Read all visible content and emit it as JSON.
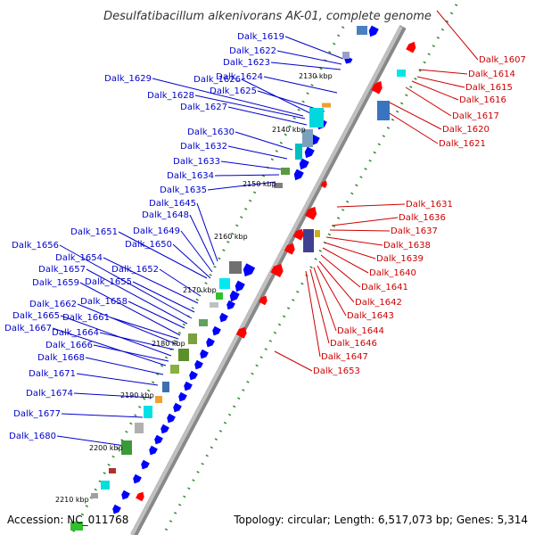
{
  "title": "Desulfatibacillum alkenivorans AK-01, complete genome",
  "accession": "Accession: NC_011768",
  "summary": "Topology: circular; Length: 6,517,073 bp; Genes: 5,314",
  "colors": {
    "forward_gene": "#0000ff",
    "reverse_gene": "#ff0000",
    "forward_label": "#0000cc",
    "reverse_label": "#cc0000",
    "backbone": "#b0b0b0",
    "dots": "#2e8b2e"
  },
  "ticks": [
    "2130 kbp",
    "2140 kbp",
    "2150 kbp",
    "2160 kbp",
    "2170 kbp",
    "2180 kbp",
    "2190 kbp",
    "2200 kbp",
    "2210 kbp"
  ],
  "forward_genes": [
    "Dalk_1619",
    "Dalk_1622",
    "Dalk_1623",
    "Dalk_1624",
    "Dalk_1625",
    "Dalk_1626",
    "Dalk_1627",
    "Dalk_1628",
    "Dalk_1629",
    "Dalk_1630",
    "Dalk_1632",
    "Dalk_1633",
    "Dalk_1634",
    "Dalk_1635",
    "Dalk_1645",
    "Dalk_1648",
    "Dalk_1649",
    "Dalk_1650",
    "Dalk_1651",
    "Dalk_1652",
    "Dalk_1654",
    "Dalk_1655",
    "Dalk_1656",
    "Dalk_1657",
    "Dalk_1658",
    "Dalk_1659",
    "Dalk_1661",
    "Dalk_1662",
    "Dalk_1664",
    "Dalk_1665",
    "Dalk_1666",
    "Dalk_1667",
    "Dalk_1668",
    "Dalk_1671",
    "Dalk_1674",
    "Dalk_1677",
    "Dalk_1680"
  ],
  "reverse_genes": [
    "Dalk_1607",
    "Dalk_1614",
    "Dalk_1615",
    "Dalk_1616",
    "Dalk_1617",
    "Dalk_1620",
    "Dalk_1621",
    "Dalk_1631",
    "Dalk_1636",
    "Dalk_1637",
    "Dalk_1638",
    "Dalk_1639",
    "Dalk_1640",
    "Dalk_1641",
    "Dalk_1642",
    "Dalk_1643",
    "Dalk_1644",
    "Dalk_1646",
    "Dalk_1647",
    "Dalk_1653"
  ]
}
